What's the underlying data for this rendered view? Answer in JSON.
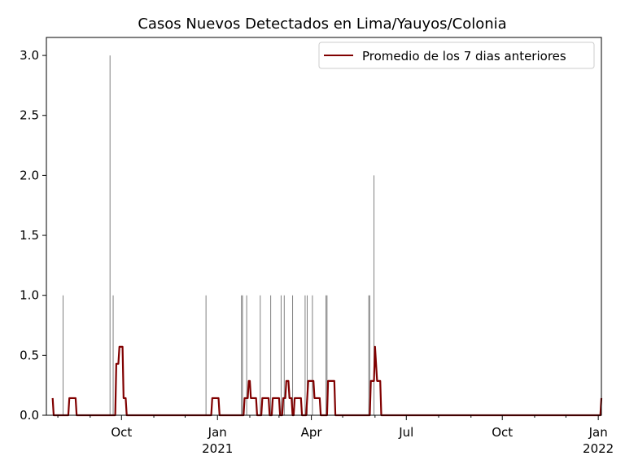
{
  "chart_data": {
    "type": "bar+line",
    "title": "Casos Nuevos Detectados en Lima/Yauyos/Colonia",
    "xlabel": "",
    "ylabel": "",
    "x_range": [
      "2020-07-21",
      "2022-01-04"
    ],
    "ylim": [
      0,
      3.15
    ],
    "yticks": [
      0.0,
      0.5,
      1.0,
      1.5,
      2.0,
      2.5,
      3.0
    ],
    "ytick_labels": [
      "0.0",
      "0.5",
      "1.0",
      "1.5",
      "2.0",
      "2.5",
      "3.0"
    ],
    "xticks": [
      {
        "date": "2020-10-01",
        "label": "Oct",
        "sublabel": ""
      },
      {
        "date": "2021-01-01",
        "label": "Jan",
        "sublabel": "2021"
      },
      {
        "date": "2021-04-01",
        "label": "Apr",
        "sublabel": ""
      },
      {
        "date": "2021-07-01",
        "label": "Jul",
        "sublabel": ""
      },
      {
        "date": "2021-10-01",
        "label": "Oct",
        "sublabel": ""
      },
      {
        "date": "2022-01-01",
        "label": "Jan",
        "sublabel": "2022"
      }
    ],
    "bar_series": {
      "color": "#808080",
      "points": [
        {
          "x": "2020-08-06",
          "y": 1
        },
        {
          "x": "2020-09-20",
          "y": 3
        },
        {
          "x": "2020-09-23",
          "y": 1
        },
        {
          "x": "2020-12-21",
          "y": 1
        },
        {
          "x": "2021-01-24",
          "y": 1
        },
        {
          "x": "2021-01-25",
          "y": 1
        },
        {
          "x": "2021-01-29",
          "y": 1
        },
        {
          "x": "2021-02-11",
          "y": 1
        },
        {
          "x": "2021-02-21",
          "y": 1
        },
        {
          "x": "2021-03-03",
          "y": 1
        },
        {
          "x": "2021-03-06",
          "y": 1
        },
        {
          "x": "2021-03-14",
          "y": 1
        },
        {
          "x": "2021-03-26",
          "y": 1
        },
        {
          "x": "2021-03-28",
          "y": 1
        },
        {
          "x": "2021-04-02",
          "y": 1
        },
        {
          "x": "2021-04-15",
          "y": 1
        },
        {
          "x": "2021-04-16",
          "y": 1
        },
        {
          "x": "2021-05-26",
          "y": 1
        },
        {
          "x": "2021-05-27",
          "y": 1
        },
        {
          "x": "2021-05-31",
          "y": 2
        },
        {
          "x": "2022-01-04",
          "y": 1
        }
      ]
    },
    "line_series": {
      "name": "Promedio de los 7 dias anteriores",
      "color": "#800000",
      "points": [
        {
          "x": "2020-07-27",
          "y": 0.143
        },
        {
          "x": "2020-07-28",
          "y": 0.0
        },
        {
          "x": "2020-08-11",
          "y": 0.0
        },
        {
          "x": "2020-08-12",
          "y": 0.143
        },
        {
          "x": "2020-08-18",
          "y": 0.143
        },
        {
          "x": "2020-08-19",
          "y": 0.0
        },
        {
          "x": "2020-09-25",
          "y": 0.0
        },
        {
          "x": "2020-09-26",
          "y": 0.429
        },
        {
          "x": "2020-09-28",
          "y": 0.429
        },
        {
          "x": "2020-09-29",
          "y": 0.571
        },
        {
          "x": "2020-10-02",
          "y": 0.571
        },
        {
          "x": "2020-10-03",
          "y": 0.143
        },
        {
          "x": "2020-10-05",
          "y": 0.143
        },
        {
          "x": "2020-10-06",
          "y": 0.0
        },
        {
          "x": "2020-12-26",
          "y": 0.0
        },
        {
          "x": "2020-12-27",
          "y": 0.143
        },
        {
          "x": "2021-01-02",
          "y": 0.143
        },
        {
          "x": "2021-01-03",
          "y": 0.0
        },
        {
          "x": "2021-01-26",
          "y": 0.0
        },
        {
          "x": "2021-01-27",
          "y": 0.143
        },
        {
          "x": "2021-01-30",
          "y": 0.143
        },
        {
          "x": "2021-01-31",
          "y": 0.286
        },
        {
          "x": "2021-02-01",
          "y": 0.286
        },
        {
          "x": "2021-02-02",
          "y": 0.143
        },
        {
          "x": "2021-02-07",
          "y": 0.143
        },
        {
          "x": "2021-02-08",
          "y": 0.0
        },
        {
          "x": "2021-02-12",
          "y": 0.0
        },
        {
          "x": "2021-02-13",
          "y": 0.143
        },
        {
          "x": "2021-02-19",
          "y": 0.143
        },
        {
          "x": "2021-02-20",
          "y": 0.0
        },
        {
          "x": "2021-02-22",
          "y": 0.0
        },
        {
          "x": "2021-02-23",
          "y": 0.143
        },
        {
          "x": "2021-03-01",
          "y": 0.143
        },
        {
          "x": "2021-03-02",
          "y": 0.0
        },
        {
          "x": "2021-03-04",
          "y": 0.0
        },
        {
          "x": "2021-03-05",
          "y": 0.143
        },
        {
          "x": "2021-03-07",
          "y": 0.143
        },
        {
          "x": "2021-03-08",
          "y": 0.286
        },
        {
          "x": "2021-03-10",
          "y": 0.286
        },
        {
          "x": "2021-03-11",
          "y": 0.143
        },
        {
          "x": "2021-03-13",
          "y": 0.143
        },
        {
          "x": "2021-03-14",
          "y": 0.0
        },
        {
          "x": "2021-03-15",
          "y": 0.0
        },
        {
          "x": "2021-03-16",
          "y": 0.143
        },
        {
          "x": "2021-03-22",
          "y": 0.143
        },
        {
          "x": "2021-03-23",
          "y": 0.0
        },
        {
          "x": "2021-03-27",
          "y": 0.0
        },
        {
          "x": "2021-03-28",
          "y": 0.143
        },
        {
          "x": "2021-03-29",
          "y": 0.286
        },
        {
          "x": "2021-04-03",
          "y": 0.286
        },
        {
          "x": "2021-04-04",
          "y": 0.143
        },
        {
          "x": "2021-04-09",
          "y": 0.143
        },
        {
          "x": "2021-04-10",
          "y": 0.0
        },
        {
          "x": "2021-04-16",
          "y": 0.0
        },
        {
          "x": "2021-04-17",
          "y": 0.286
        },
        {
          "x": "2021-04-23",
          "y": 0.286
        },
        {
          "x": "2021-04-24",
          "y": 0.0
        },
        {
          "x": "2021-05-27",
          "y": 0.0
        },
        {
          "x": "2021-05-28",
          "y": 0.286
        },
        {
          "x": "2021-05-31",
          "y": 0.286
        },
        {
          "x": "2021-06-01",
          "y": 0.571
        },
        {
          "x": "2021-06-03",
          "y": 0.286
        },
        {
          "x": "2021-06-06",
          "y": 0.286
        },
        {
          "x": "2021-06-07",
          "y": 0.0
        },
        {
          "x": "2022-01-03",
          "y": 0.0
        },
        {
          "x": "2022-01-04",
          "y": 0.143
        }
      ]
    },
    "legend": {
      "position": "upper-right",
      "labels": [
        "Promedio de los 7 dias anteriores"
      ]
    },
    "grid": false
  }
}
